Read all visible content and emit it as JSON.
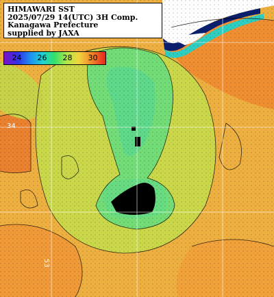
{
  "info": {
    "lines": [
      "HIMAWARI SST",
      "2025/07/29 14(UTC) 3H Comp.",
      "Kanagawa Prefecture",
      "supplied by JAXA"
    ]
  },
  "legend": {
    "labels": [
      "24",
      "26",
      "28",
      "30"
    ],
    "colors": [
      "#7b10c8",
      "#2f35e6",
      "#1f8ff2",
      "#1fd2d2",
      "#34e06a",
      "#b3e84a",
      "#f2d23c",
      "#f08a2b",
      "#e8261c"
    ]
  },
  "grid_labels": {
    "left": "34",
    "bottom": "53"
  },
  "colors": {
    "land": "#ffffff",
    "sea_warm": "#f2a73b",
    "sea_mid": "#c7d94a",
    "sea_cool": "#6fe07a",
    "cloud_mask": "#000000",
    "deep_navy": "#0a1f6e"
  }
}
